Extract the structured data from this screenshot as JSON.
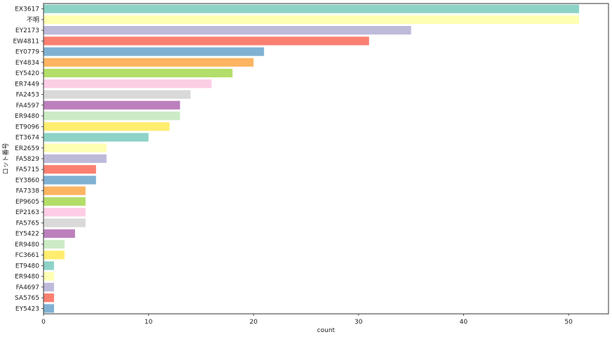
{
  "chart_data": {
    "type": "bar",
    "orientation": "horizontal",
    "xlabel": "count",
    "ylabel": "ロット番号",
    "xlim": [
      0,
      53.8
    ],
    "xticks": [
      0,
      10,
      20,
      30,
      40,
      50
    ],
    "grid": false,
    "categories": [
      "EX3617",
      "不明",
      "EY2173",
      "EW4811",
      "EY0779",
      "EY4834",
      "EY5420",
      "ER7449",
      "FA2453",
      "FA4597",
      "ER9480",
      "ET9096",
      "ET3674",
      "ER2659",
      "FA5829",
      "FA5715",
      "EY3860",
      "FA7338",
      "EP9605",
      "EP2163",
      "FA5765",
      "EY5422",
      "ER9480",
      "FC3661",
      "ET9480",
      "ER9480",
      "FA4697",
      "SA5765",
      "EY5423"
    ],
    "values": [
      51,
      51,
      35,
      31,
      21,
      20,
      18,
      16,
      14,
      13,
      13,
      12,
      10,
      6,
      6,
      5,
      5,
      4,
      4,
      4,
      4,
      3,
      2,
      2,
      1,
      1,
      1,
      1,
      1
    ],
    "colors": [
      "#8dd3c7",
      "#ffffb3",
      "#bebada",
      "#fb8072",
      "#80b1d3",
      "#fdb462",
      "#b3de69",
      "#fccde5",
      "#d9d9d9",
      "#bc80bd",
      "#ccebc5",
      "#ffed6f"
    ]
  }
}
